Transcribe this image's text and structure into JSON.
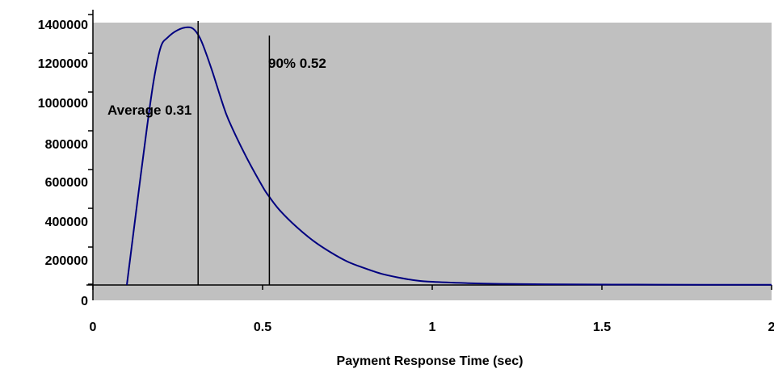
{
  "chart_data": {
    "type": "line",
    "title": "",
    "xlabel": "Payment Response Time (sec)",
    "ylabel": "",
    "xlim": [
      0,
      2
    ],
    "ylim": [
      0,
      1400000
    ],
    "xticks": [
      0,
      0.5,
      1,
      1.5,
      2
    ],
    "xtick_labels": [
      "0",
      "0.5",
      "1",
      "1.5",
      "2"
    ],
    "yticks": [
      0,
      200000,
      400000,
      600000,
      800000,
      1000000,
      1200000,
      1400000
    ],
    "ytick_labels": [
      "0",
      "200000",
      "400000",
      "600000",
      "800000",
      "1000000",
      "1200000",
      "1400000"
    ],
    "plot_background": "#c0c0c0",
    "grid": false,
    "legend": "none",
    "series": [
      {
        "color": "#000080",
        "x": [
          0.1,
          0.13,
          0.16,
          0.18,
          0.2,
          0.22,
          0.25,
          0.28,
          0.3,
          0.32,
          0.35,
          0.38,
          0.4,
          0.45,
          0.5,
          0.52,
          0.55,
          0.6,
          0.65,
          0.7,
          0.75,
          0.8,
          0.85,
          0.9,
          0.95,
          1.0,
          1.1,
          1.2,
          1.4,
          1.6,
          1.8,
          2.0
        ],
        "y": [
          0,
          430000,
          850000,
          1100000,
          1270000,
          1320000,
          1360000,
          1375000,
          1360000,
          1300000,
          1150000,
          980000,
          880000,
          690000,
          525000,
          470000,
          400000,
          310000,
          235000,
          175000,
          125000,
          90000,
          60000,
          40000,
          25000,
          17000,
          10000,
          6000,
          3000,
          2000,
          1000,
          1000
        ]
      }
    ],
    "vlines": [
      {
        "x": 0.31,
        "label": "Average 0.31",
        "color": "#000000"
      },
      {
        "x": 0.52,
        "label": "90% 0.52",
        "color": "#000000"
      }
    ]
  }
}
